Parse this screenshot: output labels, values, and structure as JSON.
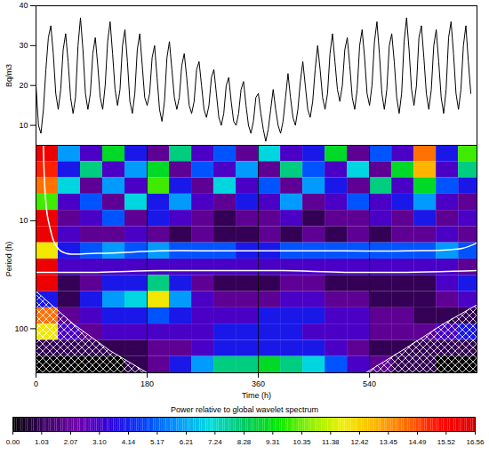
{
  "chart_data": [
    {
      "type": "line",
      "ylabel": "Bq/m3",
      "color": "#000000",
      "tick_labels": "y",
      "xlim": [
        0,
        714
      ],
      "ylim": [
        5,
        40
      ],
      "yticks": [
        10,
        20,
        30,
        40
      ],
      "x": [
        0,
        4,
        8,
        12,
        16,
        20,
        24,
        28,
        32,
        36,
        40,
        44,
        48,
        52,
        56,
        60,
        64,
        68,
        72,
        76,
        80,
        84,
        88,
        92,
        96,
        100,
        104,
        108,
        112,
        116,
        120,
        124,
        128,
        132,
        136,
        140,
        144,
        148,
        152,
        156,
        160,
        164,
        168,
        172,
        176,
        180,
        184,
        188,
        192,
        196,
        200,
        204,
        208,
        212,
        216,
        220,
        224,
        228,
        232,
        236,
        240,
        244,
        248,
        252,
        256,
        260,
        264,
        268,
        272,
        276,
        280,
        284,
        288,
        292,
        296,
        300,
        304,
        308,
        312,
        316,
        320,
        324,
        328,
        332,
        336,
        340,
        344,
        348,
        352,
        356,
        360,
        364,
        368,
        372,
        376,
        380,
        384,
        388,
        392,
        396,
        400,
        404,
        408,
        412,
        416,
        420,
        424,
        428,
        432,
        436,
        440,
        444,
        448,
        452,
        456,
        460,
        464,
        468,
        472,
        476,
        480,
        484,
        488,
        492,
        496,
        500,
        504,
        508,
        512,
        516,
        520,
        524,
        528,
        532,
        536,
        540,
        544,
        548,
        552,
        556,
        560,
        564,
        568,
        572,
        576,
        580,
        584,
        588,
        592,
        596,
        600,
        604,
        608,
        612,
        616,
        620,
        624,
        628,
        632,
        636,
        640,
        644,
        648,
        652,
        656,
        660,
        664,
        668,
        672,
        676,
        680,
        684,
        688,
        692,
        696,
        700,
        704
      ],
      "values": [
        20,
        10,
        8,
        14,
        24,
        32,
        35,
        28,
        18,
        14,
        19,
        29,
        33,
        26,
        17,
        13,
        17,
        30,
        37,
        29,
        18,
        14,
        18,
        28,
        32,
        25,
        17,
        14,
        20,
        31,
        36,
        28,
        19,
        15,
        19,
        30,
        34,
        26,
        16,
        13,
        18,
        29,
        33,
        25,
        17,
        15,
        18,
        27,
        30,
        22,
        14,
        11,
        16,
        27,
        31,
        24,
        17,
        14,
        17,
        25,
        28,
        22,
        15,
        13,
        16,
        24,
        26,
        20,
        14,
        12,
        15,
        22,
        24,
        18,
        12,
        10,
        13,
        20,
        22,
        16,
        11,
        10,
        13,
        19,
        21,
        15,
        10,
        8,
        11,
        17,
        18,
        13,
        9,
        6,
        9,
        14,
        19,
        14,
        10,
        8,
        11,
        17,
        23,
        17,
        12,
        10,
        14,
        21,
        26,
        20,
        14,
        12,
        16,
        24,
        30,
        24,
        17,
        14,
        18,
        28,
        33,
        26,
        19,
        16,
        20,
        29,
        32,
        25,
        17,
        14,
        19,
        30,
        34,
        27,
        18,
        15,
        20,
        31,
        36,
        28,
        18,
        14,
        19,
        30,
        33,
        26,
        17,
        13,
        18,
        31,
        37,
        29,
        19,
        15,
        20,
        32,
        35,
        27,
        18,
        14,
        19,
        30,
        34,
        26,
        17,
        13,
        19,
        32,
        36,
        28,
        18,
        14,
        19,
        30,
        35,
        26,
        18
      ]
    },
    {
      "type": "heatmap",
      "xlabel": "Time (h)",
      "ylabel": "Period (h)",
      "xlim": [
        0,
        714
      ],
      "ylim": [
        2,
        256
      ],
      "log": "y",
      "grid": true,
      "xticks": [
        0,
        180,
        360,
        540
      ],
      "yticks": [
        10,
        100
      ],
      "time_edges": [
        0,
        36,
        72,
        108,
        144,
        180,
        216,
        252,
        288,
        324,
        360,
        396,
        432,
        468,
        504,
        540,
        576,
        612,
        648,
        684,
        720
      ],
      "period_edges": [
        2,
        2.83,
        4,
        5.66,
        8,
        11.3,
        16,
        22.6,
        32,
        45.3,
        64,
        90.5,
        128,
        181,
        256
      ],
      "values": [
        [
          16,
          6,
          3,
          9,
          4,
          2,
          8,
          3,
          5,
          2,
          7,
          3,
          4,
          9,
          2,
          5,
          3,
          14,
          4,
          10
        ],
        [
          15,
          4,
          8,
          3,
          6,
          9,
          2,
          5,
          3,
          6,
          2,
          8,
          5,
          3,
          7,
          2,
          9,
          13,
          3,
          8
        ],
        [
          14,
          7,
          2,
          6,
          3,
          10,
          4,
          2,
          7,
          3,
          5,
          2,
          6,
          4,
          2,
          8,
          3,
          9,
          5,
          4
        ],
        [
          10,
          3,
          5,
          2,
          7,
          4,
          6,
          3,
          2,
          4,
          3,
          6,
          2,
          3,
          5,
          3,
          4,
          6,
          3,
          2
        ],
        [
          16,
          2,
          3,
          5,
          2,
          4,
          3,
          2,
          1,
          2,
          2,
          3,
          1,
          2,
          2,
          3,
          2,
          4,
          2,
          3
        ],
        [
          16,
          3,
          2,
          2,
          3,
          2,
          1,
          2,
          1,
          1,
          2,
          1,
          2,
          1,
          2,
          1,
          2,
          2,
          3,
          2
        ],
        [
          12,
          4,
          5,
          6,
          5,
          6,
          5,
          5,
          5,
          4,
          4,
          5,
          5,
          5,
          5,
          5,
          5,
          5,
          6,
          5
        ],
        [
          16,
          3,
          3,
          3,
          3,
          3,
          3,
          3,
          3,
          3,
          3,
          3,
          3,
          3,
          3,
          3,
          3,
          3,
          3,
          2
        ],
        [
          16,
          1,
          2,
          4,
          4,
          8,
          4,
          2,
          1,
          1,
          1,
          2,
          2,
          1,
          1,
          1,
          1,
          1,
          3,
          4
        ],
        [
          4,
          1,
          4,
          6,
          7,
          12,
          6,
          3,
          2,
          2,
          2,
          3,
          3,
          2,
          2,
          1,
          1,
          1,
          2,
          3
        ],
        [
          14,
          2,
          3,
          4,
          4,
          5,
          4,
          3,
          3,
          3,
          4,
          4,
          4,
          3,
          3,
          2,
          2,
          1,
          1,
          1
        ],
        [
          12,
          3,
          2,
          3,
          3,
          3,
          3,
          3,
          4,
          4,
          4,
          4,
          3,
          3,
          3,
          2,
          2,
          2,
          3,
          4
        ],
        [
          1,
          1,
          1,
          1,
          1,
          2,
          2,
          3,
          4,
          4,
          4,
          4,
          4,
          3,
          2,
          1,
          1,
          1,
          1,
          1
        ],
        [
          0,
          0,
          0,
          0,
          1,
          2,
          4,
          6,
          8,
          8,
          9,
          8,
          7,
          5,
          3,
          2,
          1,
          1,
          0,
          0
        ]
      ],
      "significance_contours": [
        {
          "x": [
            12,
            20,
            40,
            100,
            200,
            300,
            400,
            500,
            600,
            690,
            714
          ],
          "period": [
            2,
            10,
            19,
            20,
            19,
            19,
            19,
            19,
            19,
            18,
            16
          ]
        },
        {
          "x": [
            0,
            40,
            100,
            200,
            300,
            400,
            500,
            600,
            714
          ],
          "period": [
            30,
            30,
            30,
            29,
            29,
            29,
            30,
            30,
            29
          ]
        }
      ],
      "cone_of_influence": [
        {
          "x": [
            0,
            60,
            120,
            180
          ],
          "period": [
            45,
            90,
            160,
            256
          ]
        },
        {
          "x": [
            534,
            600,
            660,
            714
          ],
          "period": [
            256,
            150,
            90,
            60
          ]
        }
      ],
      "colorbar_label": "Power relative to global wavelet spectrum",
      "clim": [
        0,
        16.56
      ],
      "cticks": [
        {
          "value": 0,
          "label": "0.00"
        },
        1.03,
        2.07,
        {
          "value": 3.1,
          "label": "3.10"
        },
        4.14,
        5.17,
        6.21,
        7.24,
        8.28,
        9.31,
        10.35,
        11.38,
        12.42,
        13.45,
        14.49,
        15.52,
        16.56
      ]
    }
  ]
}
